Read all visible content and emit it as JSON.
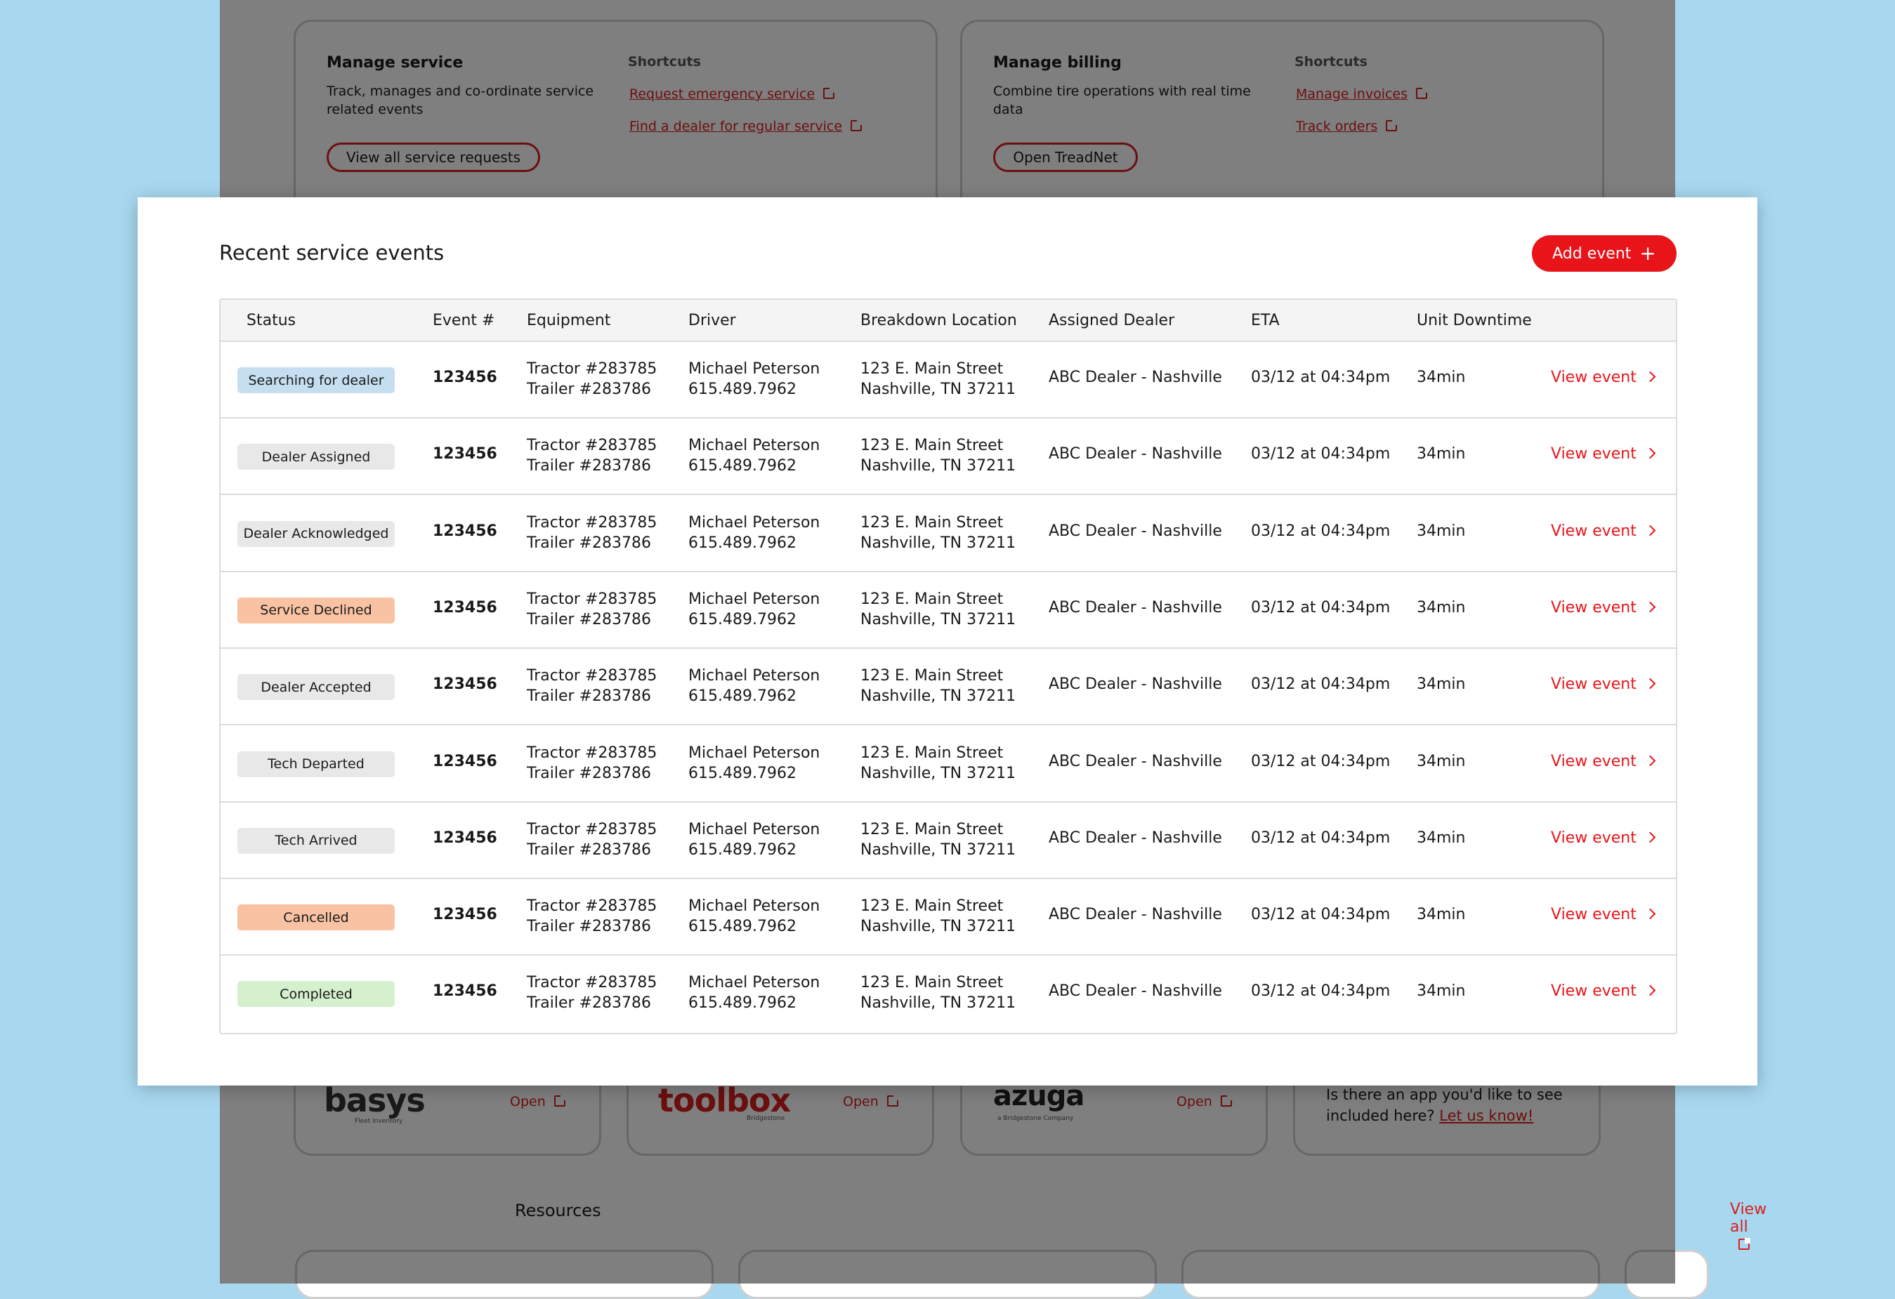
{
  "background": {
    "manage_service": {
      "title": "Manage service",
      "description": "Track, manages and co-ordinate service related events",
      "shortcuts_label": "Shortcuts",
      "shortcuts": [
        "Request emergency service",
        "Find a dealer for regular service"
      ],
      "button": "View all service requests"
    },
    "manage_billing": {
      "title": "Manage billing",
      "description": "Combine tire operations with real time data",
      "shortcuts_label": "Shortcuts",
      "shortcuts": [
        "Manage invoices",
        "Track orders"
      ],
      "button": "Open TreadNet"
    },
    "apps": [
      {
        "logo": "basys",
        "sub": "Fleet Inventory",
        "open": "Open"
      },
      {
        "logo": "toolbox",
        "sub": "Bridgestone",
        "open": "Open"
      },
      {
        "logo": "azuga",
        "sub": "a Bridgestone Company",
        "open": "Open"
      }
    ],
    "app_request": {
      "text": "Is there an app you'd like to see included here?",
      "link": "Let us know!"
    },
    "resources": {
      "title": "Resources",
      "view_all": "View all"
    }
  },
  "modal": {
    "title": "Recent service events",
    "add_button": "Add event",
    "columns": [
      "Status",
      "Event #",
      "Equipment",
      "Driver",
      "Breakdown Location",
      "Assigned Dealer",
      "ETA",
      "Unit Downtime"
    ],
    "row_action": "View event",
    "status_colors": {
      "blue": "#c5dff0",
      "gray": "#e8e8e8",
      "orange": "#f9c3a3",
      "green": "#d4f0cc"
    },
    "rows": [
      {
        "status": "Searching for dealer",
        "tone": "blue",
        "event": "123456",
        "equipment1": "Tractor #283785",
        "equipment2": "Trailer #283786",
        "driver_name": "Michael Peterson",
        "driver_phone": "615.489.7962",
        "location1": "123 E. Main Street",
        "location2": "Nashville, TN 37211",
        "dealer": "ABC Dealer - Nashville",
        "eta": "03/12 at 04:34pm",
        "downtime": "34min"
      },
      {
        "status": "Dealer Assigned",
        "tone": "gray",
        "event": "123456",
        "equipment1": "Tractor #283785",
        "equipment2": "Trailer #283786",
        "driver_name": "Michael Peterson",
        "driver_phone": "615.489.7962",
        "location1": "123 E. Main Street",
        "location2": "Nashville, TN 37211",
        "dealer": "ABC Dealer - Nashville",
        "eta": "03/12 at 04:34pm",
        "downtime": "34min"
      },
      {
        "status": "Dealer Acknowledged",
        "tone": "gray",
        "event": "123456",
        "equipment1": "Tractor #283785",
        "equipment2": "Trailer #283786",
        "driver_name": "Michael Peterson",
        "driver_phone": "615.489.7962",
        "location1": "123 E. Main Street",
        "location2": "Nashville, TN 37211",
        "dealer": "ABC Dealer - Nashville",
        "eta": "03/12 at 04:34pm",
        "downtime": "34min"
      },
      {
        "status": "Service Declined",
        "tone": "orange",
        "event": "123456",
        "equipment1": "Tractor #283785",
        "equipment2": "Trailer #283786",
        "driver_name": "Michael Peterson",
        "driver_phone": "615.489.7962",
        "location1": "123 E. Main Street",
        "location2": "Nashville, TN 37211",
        "dealer": "ABC Dealer - Nashville",
        "eta": "03/12 at 04:34pm",
        "downtime": "34min"
      },
      {
        "status": "Dealer Accepted",
        "tone": "gray",
        "event": "123456",
        "equipment1": "Tractor #283785",
        "equipment2": "Trailer #283786",
        "driver_name": "Michael Peterson",
        "driver_phone": "615.489.7962",
        "location1": "123 E. Main Street",
        "location2": "Nashville, TN 37211",
        "dealer": "ABC Dealer - Nashville",
        "eta": "03/12 at 04:34pm",
        "downtime": "34min"
      },
      {
        "status": "Tech Departed",
        "tone": "gray",
        "event": "123456",
        "equipment1": "Tractor #283785",
        "equipment2": "Trailer #283786",
        "driver_name": "Michael Peterson",
        "driver_phone": "615.489.7962",
        "location1": "123 E. Main Street",
        "location2": "Nashville, TN 37211",
        "dealer": "ABC Dealer - Nashville",
        "eta": "03/12 at 04:34pm",
        "downtime": "34min"
      },
      {
        "status": "Tech Arrived",
        "tone": "gray",
        "event": "123456",
        "equipment1": "Tractor #283785",
        "equipment2": "Trailer #283786",
        "driver_name": "Michael Peterson",
        "driver_phone": "615.489.7962",
        "location1": "123 E. Main Street",
        "location2": "Nashville, TN 37211",
        "dealer": "ABC Dealer - Nashville",
        "eta": "03/12 at 04:34pm",
        "downtime": "34min"
      },
      {
        "status": "Cancelled",
        "tone": "orange",
        "event": "123456",
        "equipment1": "Tractor #283785",
        "equipment2": "Trailer #283786",
        "driver_name": "Michael Peterson",
        "driver_phone": "615.489.7962",
        "location1": "123 E. Main Street",
        "location2": "Nashville, TN 37211",
        "dealer": "ABC Dealer - Nashville",
        "eta": "03/12 at 04:34pm",
        "downtime": "34min"
      },
      {
        "status": "Completed",
        "tone": "green",
        "event": "123456",
        "equipment1": "Tractor #283785",
        "equipment2": "Trailer #283786",
        "driver_name": "Michael Peterson",
        "driver_phone": "615.489.7962",
        "location1": "123 E. Main Street",
        "location2": "Nashville, TN 37211",
        "dealer": "ABC Dealer - Nashville",
        "eta": "03/12 at 04:34pm",
        "downtime": "34min"
      }
    ]
  }
}
